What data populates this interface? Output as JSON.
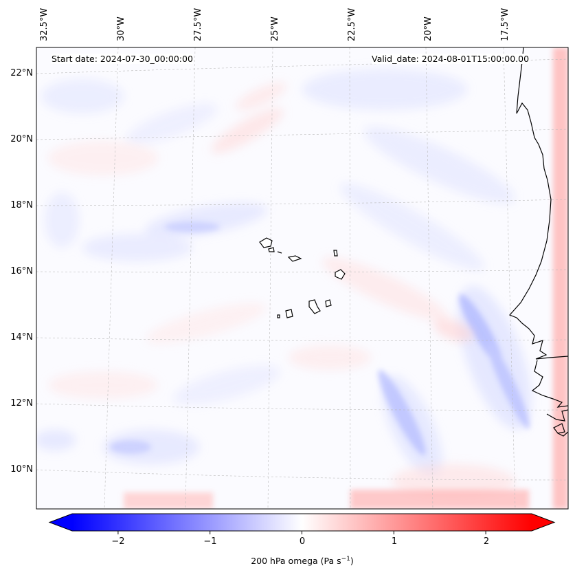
{
  "map": {
    "start_date": "Start date: 2024-07-30_00:00:00",
    "valid_date": "Valid_date: 2024-08-01T15:00:00.00",
    "longitude_labels": [
      "32.5°W",
      "30°W",
      "27.5°W",
      "25°W",
      "22.5°W",
      "20°W",
      "17.5°W"
    ],
    "latitude_labels": [
      "22°N",
      "20°N",
      "18°N",
      "16°N",
      "14°N",
      "12°N",
      "10°N"
    ],
    "features": [
      "Cape Verde islands",
      "West African coastline"
    ]
  },
  "colorbar": {
    "ticks": [
      "−2",
      "−1",
      "0",
      "1",
      "2"
    ],
    "tick_values": [
      -2,
      -1,
      0,
      1,
      2
    ],
    "range": [
      -2.5,
      2.5
    ],
    "label_main": "200 hPa omega (Pa s",
    "label_sup": "−1",
    "label_end": ")",
    "colors": {
      "negative": "#0000ff",
      "zero": "#ffffff",
      "positive": "#ff0000"
    }
  }
}
